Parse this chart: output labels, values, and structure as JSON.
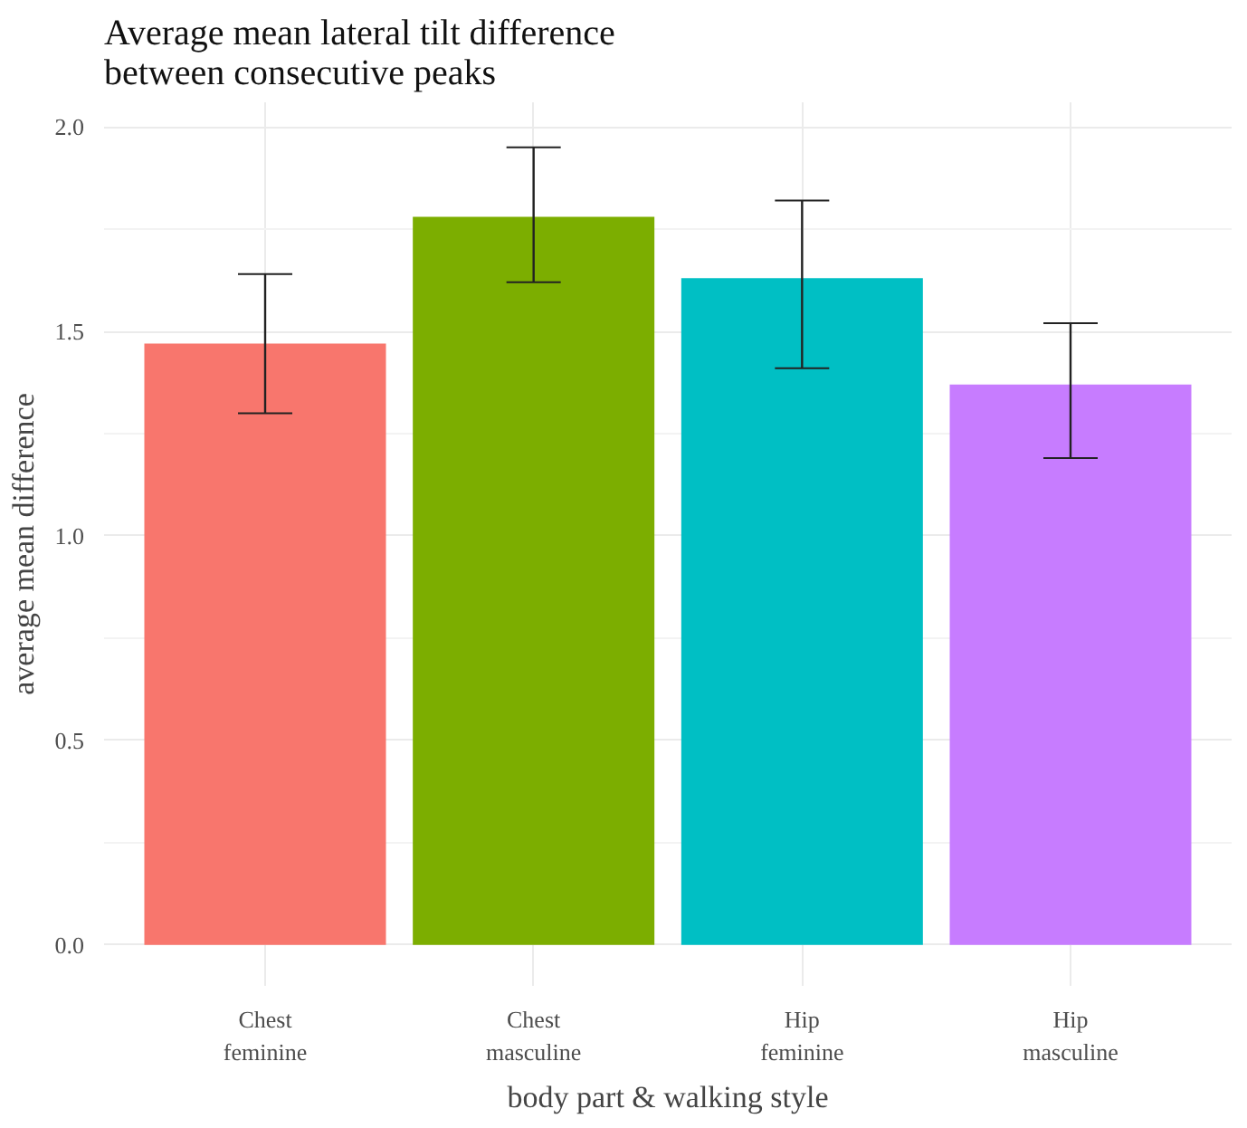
{
  "chart_data": {
    "type": "bar",
    "title": "Average mean lateral tilt difference\nbetween consecutive peaks",
    "xlabel": "body part & walking style",
    "ylabel": "average mean difference",
    "categories": [
      "Chest\nfeminine",
      "Chest\nmasculine",
      "Hip\nfeminine",
      "Hip\nmasculine"
    ],
    "values": [
      1.47,
      1.78,
      1.63,
      1.37
    ],
    "colors": [
      "#f8766d",
      "#7cae00",
      "#00bfc4",
      "#c77cff"
    ],
    "errors": [
      [
        1.3,
        1.64
      ],
      [
        1.62,
        1.95
      ],
      [
        1.41,
        1.82
      ],
      [
        1.19,
        1.52
      ]
    ],
    "ylim": [
      -0.1,
      2.06
    ],
    "yticks": [
      {
        "value": 0,
        "label": "0.0"
      },
      {
        "value": 0.5,
        "label": "0.5"
      },
      {
        "value": 1,
        "label": "1.0"
      },
      {
        "value": 1.5,
        "label": "1.5"
      },
      {
        "value": 2,
        "label": "2.0"
      }
    ],
    "grid": true
  }
}
